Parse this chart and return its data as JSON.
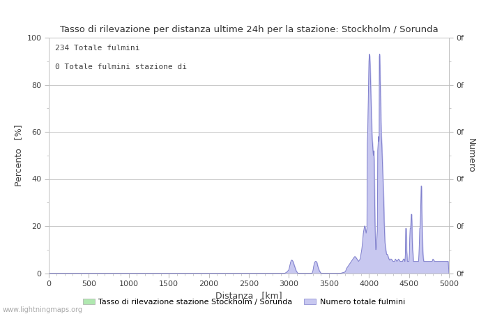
{
  "title": "Tasso di rilevazione per distanza ultime 24h per la stazione: Stockholm / Sorunda",
  "xlabel": "Distanza   [km]",
  "ylabel_left": "Percento   [%]",
  "ylabel_right": "Numero",
  "annotation_line1": "234 Totale fulmini",
  "annotation_line2": "0 Totale fulmini stazione di",
  "legend_label1": "Tasso di rilevazione stazione Stockholm / Sorunda",
  "legend_label2": "Numero totale fulmini",
  "xlim": [
    0,
    5000
  ],
  "ylim": [
    0,
    100
  ],
  "xticks": [
    0,
    500,
    1000,
    1500,
    2000,
    2500,
    3000,
    3500,
    4000,
    4500,
    5000
  ],
  "yticks_left": [
    0,
    20,
    40,
    60,
    80,
    100
  ],
  "fill_color": "#c8c8f0",
  "line_color": "#8080cc",
  "legend_fill1": "#b0e8b0",
  "bg_color": "#ffffff",
  "grid_color": "#c0c0c0",
  "text_color": "#404040",
  "watermark": "www.lightningmaps.org",
  "bar_heights": [
    [
      0,
      0
    ],
    [
      100,
      0
    ],
    [
      200,
      0
    ],
    [
      300,
      0
    ],
    [
      400,
      0
    ],
    [
      500,
      0
    ],
    [
      600,
      0
    ],
    [
      700,
      0
    ],
    [
      800,
      0
    ],
    [
      900,
      0
    ],
    [
      1000,
      0
    ],
    [
      1100,
      0
    ],
    [
      1200,
      0
    ],
    [
      1300,
      0
    ],
    [
      1400,
      0
    ],
    [
      1500,
      0
    ],
    [
      1600,
      0
    ],
    [
      1700,
      0
    ],
    [
      1800,
      0
    ],
    [
      1900,
      0
    ],
    [
      2000,
      0
    ],
    [
      2100,
      0
    ],
    [
      2200,
      0
    ],
    [
      2300,
      0
    ],
    [
      2400,
      0
    ],
    [
      2500,
      0
    ],
    [
      2600,
      0
    ],
    [
      2700,
      0
    ],
    [
      2800,
      0
    ],
    [
      2900,
      0
    ],
    [
      2950,
      0
    ],
    [
      2975,
      0.5
    ],
    [
      3000,
      1.5
    ],
    [
      3010,
      3
    ],
    [
      3020,
      4.5
    ],
    [
      3030,
      5.5
    ],
    [
      3040,
      5.5
    ],
    [
      3050,
      5
    ],
    [
      3060,
      4
    ],
    [
      3070,
      3
    ],
    [
      3080,
      2
    ],
    [
      3090,
      1
    ],
    [
      3100,
      0.5
    ],
    [
      3110,
      0
    ],
    [
      3150,
      0
    ],
    [
      3175,
      0
    ],
    [
      3200,
      0
    ],
    [
      3250,
      0
    ],
    [
      3290,
      0
    ],
    [
      3300,
      1
    ],
    [
      3310,
      3
    ],
    [
      3320,
      4.5
    ],
    [
      3330,
      5
    ],
    [
      3340,
      5
    ],
    [
      3350,
      4.5
    ],
    [
      3360,
      3
    ],
    [
      3370,
      2
    ],
    [
      3380,
      1
    ],
    [
      3390,
      0.5
    ],
    [
      3400,
      0
    ],
    [
      3450,
      0
    ],
    [
      3500,
      0
    ],
    [
      3550,
      0
    ],
    [
      3600,
      0
    ],
    [
      3650,
      0
    ],
    [
      3700,
      0.5
    ],
    [
      3710,
      1
    ],
    [
      3720,
      2
    ],
    [
      3730,
      2.5
    ],
    [
      3740,
      3
    ],
    [
      3750,
      3.5
    ],
    [
      3760,
      4
    ],
    [
      3770,
      4.5
    ],
    [
      3780,
      5
    ],
    [
      3790,
      5.5
    ],
    [
      3800,
      6
    ],
    [
      3810,
      6.5
    ],
    [
      3820,
      7
    ],
    [
      3830,
      7
    ],
    [
      3840,
      6.5
    ],
    [
      3850,
      6
    ],
    [
      3860,
      5.5
    ],
    [
      3870,
      5
    ],
    [
      3880,
      5.5
    ],
    [
      3890,
      6
    ],
    [
      3895,
      6.5
    ],
    [
      3900,
      8
    ],
    [
      3910,
      10
    ],
    [
      3920,
      13
    ],
    [
      3930,
      17
    ],
    [
      3940,
      19
    ],
    [
      3945,
      20
    ],
    [
      3950,
      20
    ],
    [
      3955,
      19
    ],
    [
      3960,
      18
    ],
    [
      3965,
      17
    ],
    [
      3970,
      18
    ],
    [
      3975,
      19
    ],
    [
      3980,
      55
    ],
    [
      3985,
      60
    ],
    [
      3990,
      70
    ],
    [
      3995,
      80
    ],
    [
      4000,
      90
    ],
    [
      4005,
      93
    ],
    [
      4010,
      92
    ],
    [
      4015,
      88
    ],
    [
      4020,
      82
    ],
    [
      4025,
      75
    ],
    [
      4030,
      68
    ],
    [
      4035,
      62
    ],
    [
      4040,
      57
    ],
    [
      4045,
      55
    ],
    [
      4050,
      52
    ],
    [
      4055,
      50
    ],
    [
      4060,
      52
    ],
    [
      4065,
      48
    ],
    [
      4067,
      42
    ],
    [
      4070,
      35
    ],
    [
      4075,
      22
    ],
    [
      4080,
      15
    ],
    [
      4085,
      10
    ],
    [
      4090,
      10
    ],
    [
      4095,
      12
    ],
    [
      4100,
      15
    ],
    [
      4105,
      18
    ],
    [
      4110,
      52
    ],
    [
      4115,
      55
    ],
    [
      4118,
      58
    ],
    [
      4120,
      57
    ],
    [
      4125,
      56
    ],
    [
      4128,
      57
    ],
    [
      4130,
      92
    ],
    [
      4133,
      93
    ],
    [
      4135,
      92
    ],
    [
      4138,
      88
    ],
    [
      4140,
      82
    ],
    [
      4145,
      75
    ],
    [
      4150,
      65
    ],
    [
      4155,
      58
    ],
    [
      4160,
      55
    ],
    [
      4165,
      50
    ],
    [
      4170,
      45
    ],
    [
      4175,
      40
    ],
    [
      4180,
      35
    ],
    [
      4185,
      30
    ],
    [
      4190,
      22
    ],
    [
      4195,
      17
    ],
    [
      4200,
      13
    ],
    [
      4210,
      10
    ],
    [
      4220,
      8
    ],
    [
      4230,
      8
    ],
    [
      4240,
      7
    ],
    [
      4250,
      6
    ],
    [
      4260,
      5.5
    ],
    [
      4270,
      6
    ],
    [
      4280,
      6
    ],
    [
      4290,
      5.5
    ],
    [
      4300,
      5
    ],
    [
      4310,
      5
    ],
    [
      4320,
      5
    ],
    [
      4330,
      6
    ],
    [
      4340,
      5.5
    ],
    [
      4350,
      5
    ],
    [
      4360,
      5.5
    ],
    [
      4370,
      6
    ],
    [
      4380,
      5.5
    ],
    [
      4390,
      5
    ],
    [
      4400,
      5
    ],
    [
      4410,
      5
    ],
    [
      4420,
      5
    ],
    [
      4430,
      6
    ],
    [
      4440,
      6
    ],
    [
      4445,
      5.5
    ],
    [
      4448,
      5
    ],
    [
      4450,
      5
    ],
    [
      4455,
      8
    ],
    [
      4458,
      15
    ],
    [
      4460,
      19
    ],
    [
      4463,
      19
    ],
    [
      4465,
      19
    ],
    [
      4468,
      15
    ],
    [
      4470,
      10
    ],
    [
      4475,
      8
    ],
    [
      4480,
      5
    ],
    [
      4490,
      5
    ],
    [
      4495,
      5
    ],
    [
      4500,
      5
    ],
    [
      4505,
      8
    ],
    [
      4510,
      15
    ],
    [
      4515,
      19
    ],
    [
      4520,
      19
    ],
    [
      4525,
      22
    ],
    [
      4530,
      25
    ],
    [
      4533,
      25
    ],
    [
      4535,
      23
    ],
    [
      4538,
      20
    ],
    [
      4540,
      15
    ],
    [
      4545,
      10
    ],
    [
      4550,
      8
    ],
    [
      4555,
      5
    ],
    [
      4560,
      5
    ],
    [
      4570,
      5
    ],
    [
      4580,
      5
    ],
    [
      4590,
      5
    ],
    [
      4600,
      5
    ],
    [
      4610,
      5
    ],
    [
      4620,
      5
    ],
    [
      4625,
      8
    ],
    [
      4630,
      13
    ],
    [
      4635,
      19
    ],
    [
      4638,
      19
    ],
    [
      4640,
      20
    ],
    [
      4645,
      25
    ],
    [
      4650,
      32
    ],
    [
      4653,
      37
    ],
    [
      4655,
      37
    ],
    [
      4658,
      35
    ],
    [
      4660,
      27
    ],
    [
      4665,
      18
    ],
    [
      4670,
      12
    ],
    [
      4675,
      8
    ],
    [
      4680,
      6
    ],
    [
      4685,
      5
    ],
    [
      4690,
      5
    ],
    [
      4695,
      5
    ],
    [
      4700,
      5
    ],
    [
      4720,
      5
    ],
    [
      4740,
      5
    ],
    [
      4760,
      5
    ],
    [
      4780,
      5
    ],
    [
      4790,
      5
    ],
    [
      4795,
      5.5
    ],
    [
      4800,
      6
    ],
    [
      4810,
      5.5
    ],
    [
      4820,
      5
    ],
    [
      4830,
      5
    ],
    [
      4840,
      5
    ],
    [
      4850,
      5
    ],
    [
      4860,
      5
    ],
    [
      4870,
      5
    ],
    [
      4880,
      5
    ],
    [
      4890,
      5
    ],
    [
      4900,
      5
    ],
    [
      4910,
      5
    ],
    [
      4920,
      5
    ],
    [
      4930,
      5
    ],
    [
      4940,
      5
    ],
    [
      4950,
      5
    ],
    [
      4960,
      5
    ],
    [
      4970,
      5
    ],
    [
      4980,
      5
    ],
    [
      4990,
      5
    ],
    [
      5000,
      0
    ]
  ]
}
